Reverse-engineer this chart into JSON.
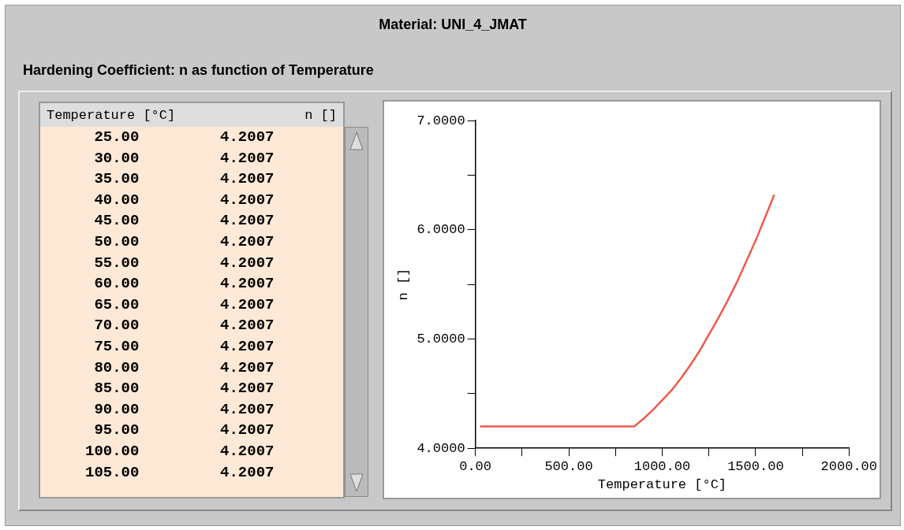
{
  "chart_data": [
    {
      "type": "other",
      "annotations": [
        "Temperature [°C]",
        "n []",
        "25.00 4.2007",
        "30.00 4.2007",
        "35.00 4.2007",
        "40.00 4.2007",
        "45.00 4.2007",
        "50.00 4.2007",
        "55.00 4.2007",
        "60.00 4.2007",
        "65.00 4.2007",
        "70.00 4.2007",
        "75.00 4.2007",
        "80.00 4.2007",
        "85.00 4.2007",
        "90.00 4.2007",
        "95.00 4.2007",
        "100.00 4.2007",
        "105.00 4.2007"
      ]
    },
    {
      "type": "line",
      "title": "Material: UNI_4_JMAT",
      "subtitle": "Hardening Coefficient: n as function of Temperature",
      "xlabel": "Temperature [°C]",
      "ylabel": "n []",
      "x": [
        25,
        850,
        900,
        950,
        1000,
        1050,
        1100,
        1150,
        1200,
        1250,
        1300,
        1350,
        1400,
        1450,
        1500,
        1550,
        1600
      ],
      "values": [
        4.2,
        4.2,
        4.27,
        4.35,
        4.44,
        4.53,
        4.64,
        4.76,
        4.89,
        5.04,
        5.19,
        5.35,
        5.52,
        5.71,
        5.9,
        6.11,
        6.32
      ],
      "color": "#f05a4a",
      "xlim": [
        0,
        2000
      ],
      "xticks": [
        {
          "value": 0,
          "label": "0.00"
        },
        {
          "value": 250,
          "label": null
        },
        {
          "value": 500,
          "label": "500.00"
        },
        {
          "value": 750,
          "label": null
        },
        {
          "value": 1000,
          "label": "1000.00"
        },
        {
          "value": 1250,
          "label": null
        },
        {
          "value": 1500,
          "label": "1500.00"
        },
        {
          "value": 1750,
          "label": null
        },
        {
          "value": 2000,
          "label": "2000.00"
        }
      ],
      "ylim": [
        4,
        7
      ],
      "yticks": [
        {
          "value": 4,
          "label": "4.0000"
        },
        {
          "value": 4.5,
          "label": null
        },
        {
          "value": 5,
          "label": "5.0000"
        },
        {
          "value": 5.5,
          "label": null
        },
        {
          "value": 6,
          "label": "6.0000"
        },
        {
          "value": 6.5,
          "label": null
        },
        {
          "value": 7,
          "label": "7.0000"
        }
      ],
      "grid": false,
      "legend": false,
      "marker": "none",
      "line_style": "solid"
    }
  ]
}
